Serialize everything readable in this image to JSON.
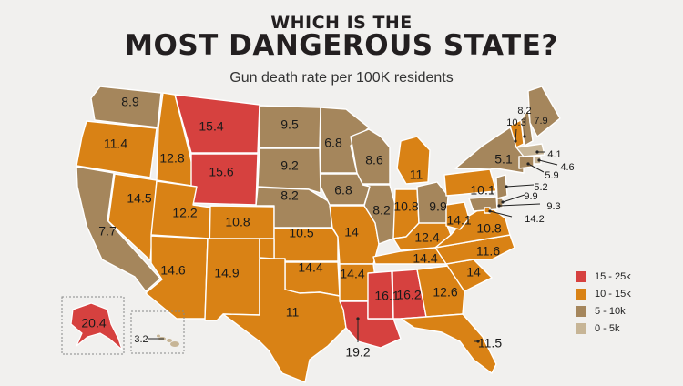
{
  "header": {
    "kicker": "WHICH IS THE",
    "title": "MOST DANGEROUS STATE?",
    "subtitle": "Gun death rate per 100K residents"
  },
  "colors": {
    "band_15_25": "#d6413f",
    "band_10_15": "#d98215",
    "band_5_10": "#a5865c",
    "band_0_5": "#c7b596",
    "background": "#f1f0ee"
  },
  "legend": [
    {
      "label": "15 - 25k",
      "band": "band_15_25"
    },
    {
      "label": "10 - 15k",
      "band": "band_10_15"
    },
    {
      "label": "5 - 10k",
      "band": "band_5_10"
    },
    {
      "label": "0 - 5k",
      "band": "band_0_5"
    }
  ],
  "states": {
    "WA": {
      "value": 8.9
    },
    "OR": {
      "value": 11.4
    },
    "CA": {
      "value": 7.7
    },
    "NV": {
      "value": 14.5
    },
    "ID": {
      "value": 12.8
    },
    "MT": {
      "value": 15.4
    },
    "WY": {
      "value": 15.6
    },
    "UT": {
      "value": 12.2
    },
    "CO": {
      "value": 10.8
    },
    "AZ": {
      "value": 14.6
    },
    "NM": {
      "value": 14.9
    },
    "ND": {
      "value": 9.5
    },
    "SD": {
      "value": 9.2
    },
    "NE": {
      "value": 8.2
    },
    "KS": {
      "value": 10.5
    },
    "OK": {
      "value": 14.4
    },
    "TX": {
      "value": 11
    },
    "MN": {
      "value": 6.8
    },
    "IA": {
      "value": 6.8
    },
    "MO": {
      "value": 14
    },
    "AR": {
      "value": 14.4
    },
    "LA": {
      "value": 19.2
    },
    "WI": {
      "value": 8.6
    },
    "IL": {
      "value": 8.2
    },
    "MI": {
      "value": 11
    },
    "IN": {
      "value": 10.8
    },
    "OH": {
      "value": 9.9
    },
    "KY": {
      "value": 12.4
    },
    "TN": {
      "value": 14.4
    },
    "MS": {
      "value": 16.1
    },
    "AL": {
      "value": 16.2
    },
    "GA": {
      "value": 12.6
    },
    "FL": {
      "value": 11.5
    },
    "SC": {
      "value": 14
    },
    "NC": {
      "value": 11.6
    },
    "VA": {
      "value": 10.8
    },
    "WV": {
      "value": 14.1
    },
    "PA": {
      "value": 10.1
    },
    "NY": {
      "value": 5.1
    },
    "VT": {
      "value": 10.3
    },
    "NH": {
      "value": 8.2
    },
    "ME": {
      "value": 7.9
    },
    "MA": {
      "value": 4.1
    },
    "RI": {
      "value": 4.6
    },
    "CT": {
      "value": 5.9
    },
    "NJ": {
      "value": 5.2
    },
    "DE": {
      "value": 9.9
    },
    "MD": {
      "value": 9.3
    },
    "DC": {
      "value": 14.2
    },
    "AK": {
      "value": 20.4
    },
    "HI": {
      "value": 3.2
    }
  }
}
